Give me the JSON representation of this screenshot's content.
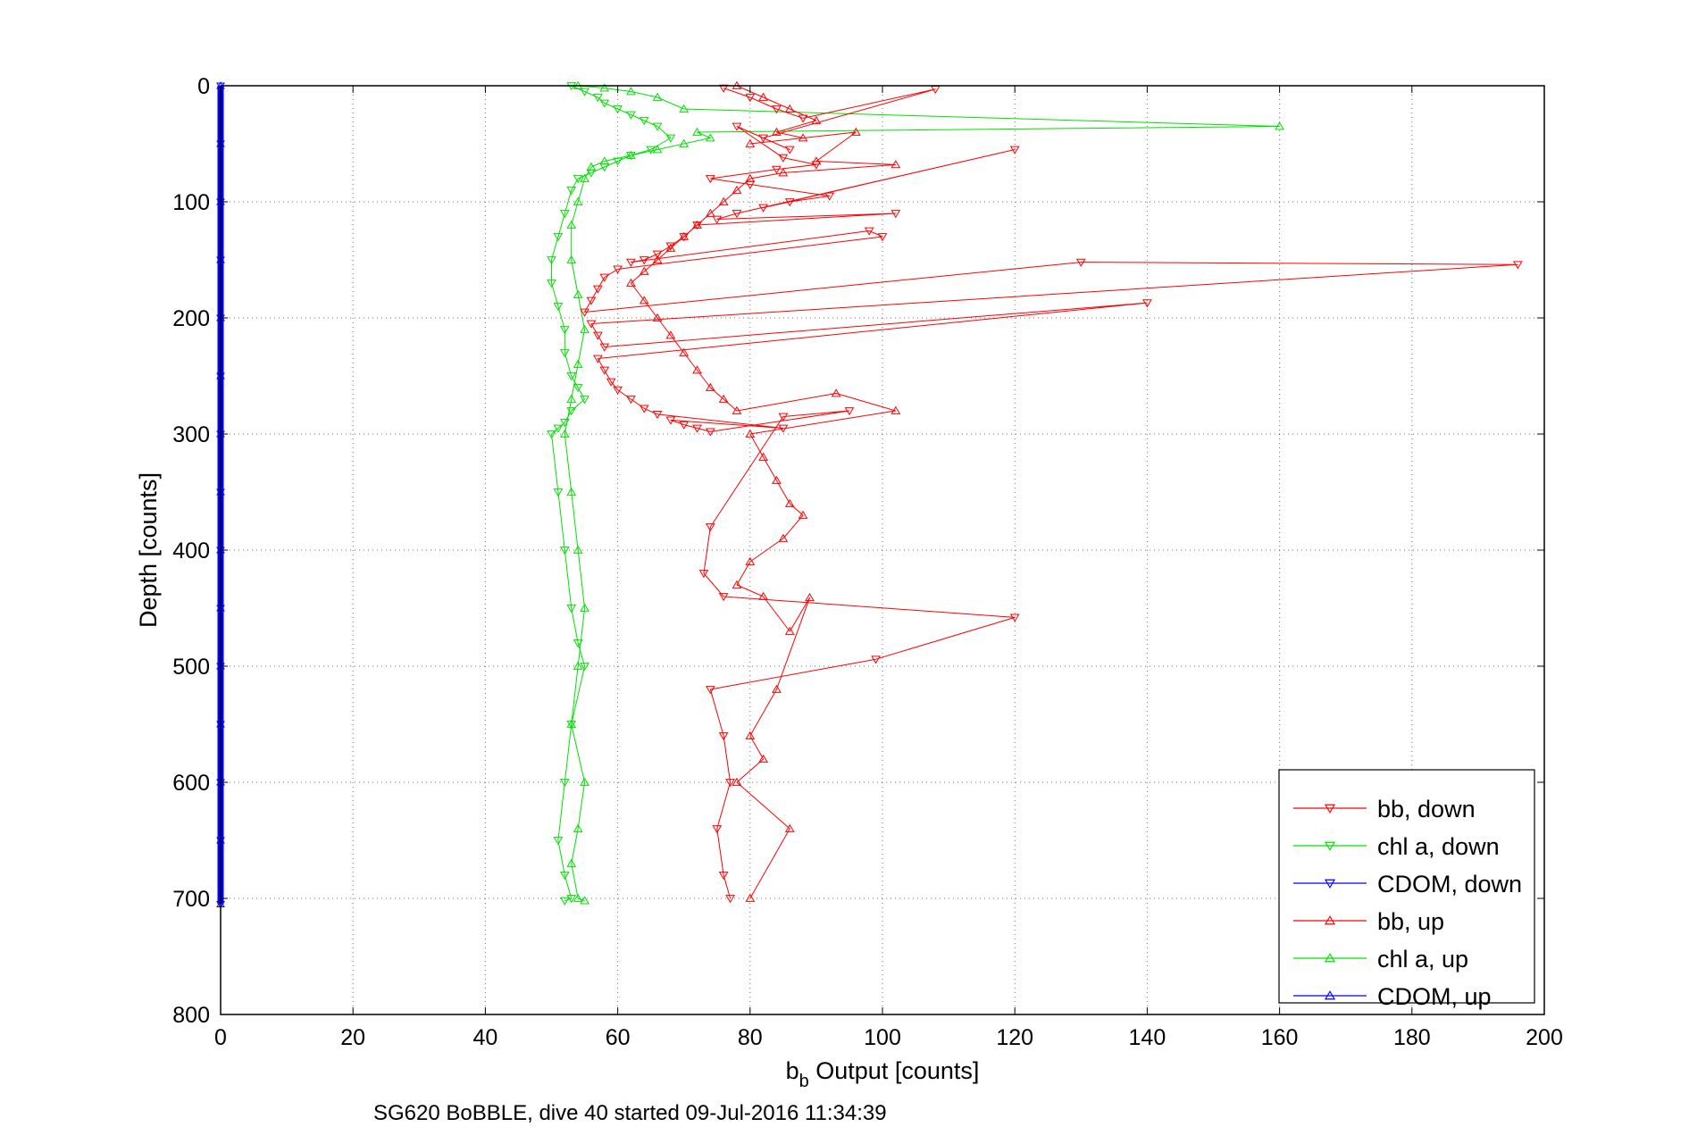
{
  "chart_data": {
    "type": "scatter",
    "xlabel_main": "b",
    "xlabel_sub": "b",
    "xlabel_rest": " Output [counts]",
    "ylabel": "Depth [counts]",
    "caption": "SG620 BoBBLE, dive 40 started 09-Jul-2016 11:34:39",
    "xlim": [
      0,
      200
    ],
    "ylim": [
      0,
      800
    ],
    "y_reversed": true,
    "grid": true,
    "legend_position": "bottom-right",
    "x_ticks": [
      "0",
      "20",
      "40",
      "60",
      "80",
      "100",
      "120",
      "140",
      "160",
      "180",
      "200"
    ],
    "y_ticks": [
      "0",
      "100",
      "200",
      "300",
      "400",
      "500",
      "600",
      "700",
      "800"
    ],
    "colors": {
      "red": "#ff0000",
      "green": "#00e000",
      "blue": "#0000ff"
    },
    "series": [
      {
        "name": "bb, down",
        "color": "#ff0000",
        "marker": "triangle-down",
        "x": [
          76,
          80,
          84,
          88,
          108,
          82,
          86,
          78,
          85,
          90,
          84,
          74,
          80,
          92,
          86,
          82,
          120,
          78,
          75,
          102,
          72,
          70,
          68,
          66,
          64,
          62,
          98,
          100,
          60,
          58,
          57,
          56,
          55,
          130,
          196,
          56,
          57,
          58,
          140,
          57,
          58,
          59,
          60,
          62,
          64,
          66,
          85,
          68,
          70,
          72,
          74,
          95,
          85,
          74,
          73,
          76,
          120,
          99,
          74,
          76,
          77,
          75,
          76,
          77
        ],
        "y": [
          2,
          10,
          20,
          28,
          3,
          45,
          55,
          35,
          62,
          68,
          72,
          80,
          85,
          95,
          100,
          105,
          55,
          110,
          115,
          110,
          120,
          130,
          138,
          145,
          150,
          152,
          125,
          130,
          158,
          165,
          175,
          185,
          195,
          152,
          154,
          205,
          215,
          225,
          187,
          235,
          245,
          255,
          262,
          270,
          278,
          283,
          295,
          288,
          292,
          295,
          298,
          280,
          285,
          380,
          420,
          440,
          458,
          494,
          520,
          560,
          600,
          640,
          680,
          700
        ]
      },
      {
        "name": "chl a, down",
        "color": "#00e000",
        "marker": "triangle-down",
        "x": [
          53,
          55,
          57,
          58,
          60,
          62,
          64,
          66,
          68,
          65,
          62,
          60,
          58,
          56,
          54,
          53,
          52,
          51,
          50,
          50,
          51,
          52,
          52,
          53,
          54,
          55,
          53,
          52,
          51,
          50,
          51,
          52,
          53,
          54,
          55,
          53,
          52,
          51,
          52,
          53,
          52
        ],
        "y": [
          0,
          5,
          10,
          15,
          20,
          25,
          30,
          35,
          45,
          55,
          60,
          65,
          70,
          75,
          80,
          90,
          110,
          130,
          150,
          170,
          190,
          210,
          230,
          250,
          260,
          270,
          280,
          290,
          295,
          300,
          350,
          400,
          450,
          480,
          500,
          550,
          600,
          650,
          680,
          700,
          702
        ]
      },
      {
        "name": "CDOM, down",
        "color": "#0000ff",
        "marker": "triangle-down",
        "x": [
          0,
          0,
          0,
          0,
          0,
          0,
          0,
          0,
          0,
          0,
          0,
          0,
          0,
          0,
          0
        ],
        "y": [
          0,
          50,
          100,
          150,
          200,
          250,
          300,
          350,
          400,
          450,
          500,
          550,
          600,
          650,
          705
        ]
      },
      {
        "name": "bb, up",
        "color": "#ff0000",
        "marker": "triangle-up",
        "x": [
          78,
          82,
          86,
          90,
          84,
          88,
          80,
          96,
          90,
          102,
          85,
          80,
          78,
          76,
          74,
          72,
          70,
          68,
          66,
          64,
          62,
          64,
          66,
          68,
          70,
          72,
          74,
          76,
          78,
          93,
          102,
          80,
          82,
          84,
          86,
          88,
          85,
          80,
          78,
          82,
          86,
          89,
          84,
          80,
          82,
          78,
          86,
          80
        ],
        "y": [
          0,
          10,
          20,
          30,
          40,
          45,
          50,
          40,
          65,
          68,
          75,
          80,
          90,
          100,
          110,
          120,
          130,
          140,
          150,
          160,
          170,
          185,
          200,
          215,
          230,
          245,
          260,
          270,
          280,
          265,
          280,
          300,
          320,
          340,
          360,
          370,
          390,
          410,
          430,
          440,
          470,
          441,
          520,
          560,
          580,
          600,
          640,
          700
        ]
      },
      {
        "name": "chl a, up",
        "color": "#00e000",
        "marker": "triangle-up",
        "x": [
          54,
          58,
          62,
          66,
          70,
          160,
          72,
          74,
          70,
          66,
          62,
          58,
          56,
          55,
          54,
          53,
          53,
          54,
          55,
          54,
          53,
          52,
          53,
          54,
          55,
          54,
          53,
          55,
          54,
          53,
          54,
          55
        ],
        "y": [
          0,
          2,
          5,
          10,
          20,
          35,
          40,
          45,
          50,
          55,
          60,
          65,
          70,
          80,
          100,
          120,
          150,
          180,
          210,
          240,
          270,
          300,
          350,
          400,
          450,
          500,
          550,
          600,
          640,
          670,
          700,
          702
        ]
      },
      {
        "name": "CDOM, up",
        "color": "#0000ff",
        "marker": "triangle-up",
        "x": [
          0,
          0,
          0,
          0,
          0,
          0,
          0,
          0,
          0,
          0,
          0,
          0,
          0,
          0,
          0
        ],
        "y": [
          0,
          50,
          100,
          150,
          200,
          250,
          300,
          350,
          400,
          450,
          500,
          550,
          600,
          650,
          705
        ]
      }
    ]
  }
}
